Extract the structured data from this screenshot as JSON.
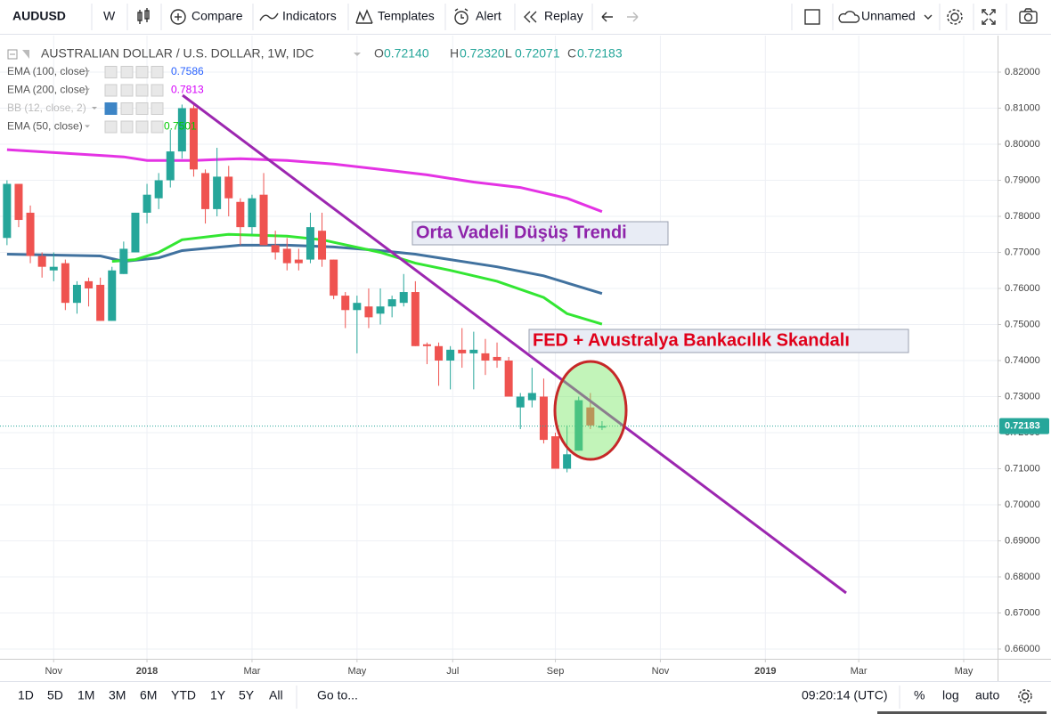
{
  "toolbar": {
    "symbol": "AUDUSD",
    "interval": "W",
    "items": [
      "Compare",
      "Indicators",
      "Templates",
      "Alert",
      "Replay"
    ],
    "layout_name": "Unnamed"
  },
  "bottom_bar": {
    "ranges": [
      "1D",
      "5D",
      "1M",
      "3M",
      "6M",
      "YTD",
      "1Y",
      "5Y",
      "All"
    ],
    "goto": "Go to...",
    "clock": "09:20:14 (UTC)",
    "options": [
      "%",
      "log",
      "auto"
    ]
  },
  "chart_data": {
    "type": "candlestick",
    "title": "AUSTRALIAN DOLLAR / U.S. DOLLAR, 1W, IDC",
    "ohlc_legend": [
      {
        "key": "O",
        "label": "0.72140"
      },
      {
        "key": "H",
        "label": "0.72320"
      },
      {
        "key": "L",
        "label": "0.72071"
      },
      {
        "key": "C",
        "label": "0.72183"
      }
    ],
    "up_color": "#26a69a",
    "down_color": "#ef5350",
    "open": [
      0.774,
      0.789,
      0.781,
      0.769,
      0.765,
      0.767,
      0.756,
      0.762,
      0.761,
      0.751,
      0.764,
      0.77,
      0.781,
      0.785,
      0.79,
      0.798,
      0.81,
      0.792,
      0.782,
      0.791,
      0.784,
      0.777,
      0.786,
      0.772,
      0.771,
      0.768,
      0.768,
      0.776,
      0.768,
      0.758,
      0.754,
      0.755,
      0.753,
      0.755,
      0.756,
      0.759,
      0.7445,
      0.744,
      0.74,
      0.743,
      0.742,
      0.742,
      0.741,
      0.74,
      0.727,
      0.729,
      0.73,
      0.719,
      0.71,
      0.715,
      0.727,
      0.7214
    ],
    "high": [
      0.79,
      0.789,
      0.783,
      0.77,
      0.77,
      0.768,
      0.762,
      0.763,
      0.763,
      0.766,
      0.773,
      0.781,
      0.789,
      0.792,
      0.804,
      0.811,
      0.811,
      0.793,
      0.799,
      0.794,
      0.785,
      0.786,
      0.792,
      0.776,
      0.774,
      0.771,
      0.781,
      0.781,
      0.768,
      0.759,
      0.758,
      0.76,
      0.76,
      0.758,
      0.764,
      0.762,
      0.745,
      0.745,
      0.744,
      0.749,
      0.748,
      0.746,
      0.745,
      0.741,
      0.731,
      0.738,
      0.735,
      0.72,
      0.722,
      0.73,
      0.731,
      0.7232
    ],
    "low": [
      0.772,
      0.777,
      0.767,
      0.763,
      0.762,
      0.754,
      0.753,
      0.755,
      0.751,
      0.751,
      0.764,
      0.77,
      0.778,
      0.782,
      0.788,
      0.796,
      0.791,
      0.778,
      0.78,
      0.78,
      0.772,
      0.775,
      0.772,
      0.768,
      0.765,
      0.765,
      0.767,
      0.766,
      0.757,
      0.749,
      0.742,
      0.749,
      0.75,
      0.752,
      0.755,
      0.744,
      0.739,
      0.733,
      0.732,
      0.738,
      0.732,
      0.736,
      0.738,
      0.73,
      0.721,
      0.727,
      0.717,
      0.71,
      0.709,
      0.715,
      0.721,
      0.72071
    ],
    "close": [
      0.789,
      0.779,
      0.769,
      0.766,
      0.766,
      0.756,
      0.761,
      0.76,
      0.751,
      0.765,
      0.771,
      0.781,
      0.786,
      0.79,
      0.798,
      0.81,
      0.793,
      0.782,
      0.791,
      0.785,
      0.777,
      0.785,
      0.772,
      0.77,
      0.767,
      0.767,
      0.777,
      0.768,
      0.758,
      0.754,
      0.756,
      0.752,
      0.755,
      0.757,
      0.759,
      0.744,
      0.744,
      0.74,
      0.743,
      0.742,
      0.743,
      0.74,
      0.74,
      0.73,
      0.73,
      0.731,
      0.718,
      0.71,
      0.714,
      0.729,
      0.722,
      0.72183
    ],
    "indicators": [
      {
        "name": "EMA (100, close)",
        "label": "0.7586",
        "color": "#41729f",
        "label_color": "#2962ff",
        "x": [
          0,
          8,
          10,
          13,
          15,
          20,
          24,
          28,
          32,
          35,
          38,
          42,
          46,
          51
        ],
        "values": [
          0.7695,
          0.769,
          0.7675,
          0.7685,
          0.7705,
          0.772,
          0.772,
          0.7715,
          0.7705,
          0.7695,
          0.768,
          0.766,
          0.7635,
          0.7586
        ]
      },
      {
        "name": "EMA (200, close)",
        "label": "0.7813",
        "color": "#e433e4",
        "label_color": "#d500f9",
        "x": [
          0,
          10,
          12,
          16,
          20,
          24,
          28,
          32,
          36,
          40,
          44,
          48,
          51
        ],
        "values": [
          0.7985,
          0.7965,
          0.7955,
          0.7955,
          0.796,
          0.7955,
          0.7945,
          0.793,
          0.7915,
          0.7895,
          0.788,
          0.785,
          0.7813
        ]
      },
      {
        "name": "BB (12, close, 2)"
      },
      {
        "name": "EMA (50, close)",
        "label": "0.7501",
        "color": "#33e633",
        "label_color": "#00c800",
        "x": [
          9,
          11,
          13,
          15,
          19,
          24,
          27,
          32,
          35,
          38,
          42,
          46,
          48,
          51
        ],
        "values": [
          0.7675,
          0.768,
          0.77,
          0.7735,
          0.775,
          0.7745,
          0.7735,
          0.77,
          0.767,
          0.765,
          0.762,
          0.7575,
          0.753,
          0.7501
        ]
      }
    ],
    "annotations": [
      {
        "text": "Orta Vadeli Düşüş Trendi",
        "color": "#8e24aa"
      },
      {
        "text": "FED + Avustralya Bankacılık Skandalı",
        "color": "#e0001a"
      }
    ],
    "xlim": [
      -0.6,
      84.9
    ],
    "xticks": [
      {
        "value": 4,
        "label": "Nov"
      },
      {
        "value": 12,
        "label": "2018"
      },
      {
        "value": 21,
        "label": "Mar"
      },
      {
        "value": 30,
        "label": "May"
      },
      {
        "value": 38.2,
        "label": "Jul"
      },
      {
        "value": 47,
        "label": "Sep"
      },
      {
        "value": 56,
        "label": "Nov"
      },
      {
        "value": 65,
        "label": "2019"
      },
      {
        "value": 73,
        "label": "Mar"
      },
      {
        "value": 82,
        "label": "May"
      }
    ],
    "ylim": [
      0.65728,
      0.83012
    ],
    "yticks": [
      {
        "value": 0.82,
        "label": "0.82000"
      },
      {
        "value": 0.81,
        "label": "0.81000"
      },
      {
        "value": 0.8,
        "label": "0.80000"
      },
      {
        "value": 0.79,
        "label": "0.79000"
      },
      {
        "value": 0.78,
        "label": "0.78000"
      },
      {
        "value": 0.77,
        "label": "0.77000"
      },
      {
        "value": 0.76,
        "label": "0.76000"
      },
      {
        "value": 0.75,
        "label": "0.75000"
      },
      {
        "value": 0.74,
        "label": "0.74000"
      },
      {
        "value": 0.73,
        "label": "0.73000"
      },
      {
        "value": 0.72,
        "label": "0.72000"
      },
      {
        "value": 0.71,
        "label": "0.71000"
      },
      {
        "value": 0.7,
        "label": "0.70000"
      },
      {
        "value": 0.69,
        "label": "0.69000"
      },
      {
        "value": 0.68,
        "label": "0.68000"
      },
      {
        "value": 0.67,
        "label": "0.67000"
      },
      {
        "value": 0.66,
        "label": "0.66000"
      }
    ],
    "grid": true
  }
}
